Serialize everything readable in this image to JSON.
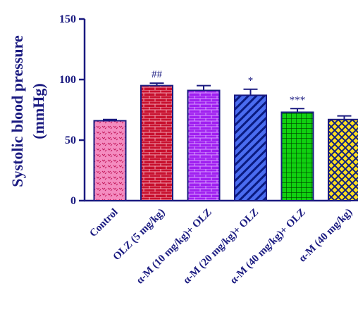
{
  "chart_data": {
    "type": "bar",
    "ylabel_line1": "Systolic blood pressure",
    "ylabel_line2": "(mmHg)",
    "ylim": [
      0,
      150
    ],
    "yticks": [
      "0",
      "50",
      "100",
      "150"
    ],
    "grid": false,
    "categories": [
      "Control",
      "OLZ (5 mg/kg)",
      "α-M (10 mg/kg)+ OLZ",
      "α-M (20 mg/kg)+ OLZ",
      "α-M (40 mg/kg)+ OLZ",
      "α-M (40 mg/kg)"
    ],
    "values": [
      66,
      95,
      91,
      87,
      73,
      67
    ],
    "errors": [
      1,
      2,
      4,
      5,
      3,
      3
    ],
    "annotations": [
      "",
      "##",
      "",
      "*",
      "***",
      ""
    ],
    "colors": [
      {
        "bg": "#f48cc0",
        "fg": "#c2185b",
        "pattern": "dots"
      },
      {
        "bg": "#c8102e",
        "fg": "#f0a0b0",
        "pattern": "bricks"
      },
      {
        "bg": "#a020f0",
        "fg": "#d9a0ff",
        "pattern": "bricks"
      },
      {
        "bg": "#4a6cf0",
        "fg": "#0a1a80",
        "pattern": "diagonal"
      },
      {
        "bg": "#10d010",
        "fg": "#004000",
        "pattern": "grid"
      },
      {
        "bg": "#ffe020",
        "fg": "#102080",
        "pattern": "crosshatch"
      }
    ]
  }
}
